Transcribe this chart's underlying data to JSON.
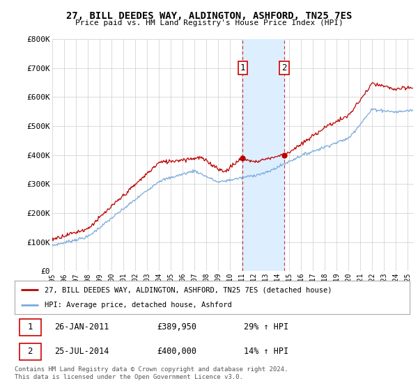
{
  "title": "27, BILL DEEDES WAY, ALDINGTON, ASHFORD, TN25 7ES",
  "subtitle": "Price paid vs. HM Land Registry's House Price Index (HPI)",
  "ylabel_ticks": [
    "£0",
    "£100K",
    "£200K",
    "£300K",
    "£400K",
    "£500K",
    "£600K",
    "£700K",
    "£800K"
  ],
  "ylim": [
    0,
    800000
  ],
  "xlim_start": 1995.0,
  "xlim_end": 2025.5,
  "transaction1_x": 2011.07,
  "transaction1_y": 389950,
  "transaction1_label": "1",
  "transaction1_date": "26-JAN-2011",
  "transaction1_price": "£389,950",
  "transaction1_hpi": "29% ↑ HPI",
  "transaction2_x": 2014.56,
  "transaction2_y": 400000,
  "transaction2_label": "2",
  "transaction2_date": "25-JUL-2014",
  "transaction2_price": "£400,000",
  "transaction2_hpi": "14% ↑ HPI",
  "line1_color": "#bb0000",
  "line2_color": "#7aaadd",
  "shade_color": "#ddeeff",
  "grid_color": "#cccccc",
  "background_color": "#ffffff",
  "legend1_label": "27, BILL DEEDES WAY, ALDINGTON, ASHFORD, TN25 7ES (detached house)",
  "legend2_label": "HPI: Average price, detached house, Ashford",
  "footer": "Contains HM Land Registry data © Crown copyright and database right 2024.\nThis data is licensed under the Open Government Licence v3.0.",
  "tick_years": [
    1995,
    1996,
    1997,
    1998,
    1999,
    2000,
    2001,
    2002,
    2003,
    2004,
    2005,
    2006,
    2007,
    2008,
    2009,
    2010,
    2011,
    2012,
    2013,
    2014,
    2015,
    2016,
    2017,
    2018,
    2019,
    2020,
    2021,
    2022,
    2023,
    2024,
    2025
  ]
}
